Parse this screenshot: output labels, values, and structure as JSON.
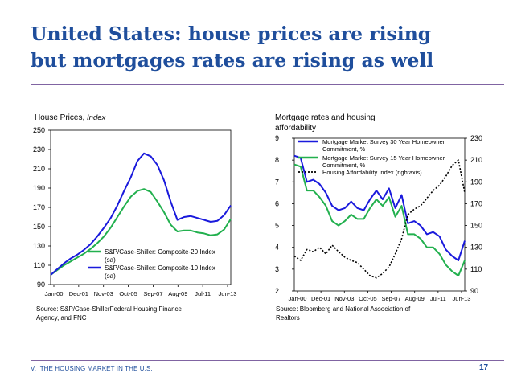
{
  "slide": {
    "title_line1": "United States: house prices are rising",
    "title_line2": "but mortgages rates are rising as well",
    "footer_section": "V.",
    "footer_text": "THE HOUSING MARKET IN THE U.S.",
    "page_number": "17",
    "colors": {
      "title": "#1f4e9c",
      "rule": "#8064a2",
      "blue": "#1a1adc",
      "green": "#22b04e",
      "black": "#000000"
    }
  },
  "chart_data": [
    {
      "type": "line",
      "title": "House Prices,",
      "title_unit": "Index",
      "source": "Source: S&P/Case-ShillerFederal Housing Finance Agency, and FNC",
      "x_ticks": [
        "Jan-00",
        "Dec-01",
        "Nov-03",
        "Oct-05",
        "Sep-07",
        "Aug-09",
        "Jul-11",
        "Jun-13"
      ],
      "ylim": [
        90,
        250
      ],
      "y_ticks": [
        90,
        110,
        130,
        150,
        170,
        190,
        210,
        230,
        250
      ],
      "legend_position": "bottom-right",
      "x": [
        "Jan-00",
        "Jul-00",
        "Jan-01",
        "Jul-01",
        "Jan-02",
        "Jul-02",
        "Jan-03",
        "Jul-03",
        "Jan-04",
        "Jul-04",
        "Jan-05",
        "Jul-05",
        "Jan-06",
        "Jul-06",
        "Jan-07",
        "Jul-07",
        "Jan-08",
        "Jul-08",
        "Jan-09",
        "Jul-09",
        "Jan-10",
        "Jul-10",
        "Jan-11",
        "Jul-11",
        "Jan-12",
        "Jul-12",
        "Jan-13",
        "Jun-13"
      ],
      "series": [
        {
          "name": "S&P/Case-Shiller: Composite-20 Index (sa)",
          "color": "#22b04e",
          "values": [
            100,
            105,
            110,
            114,
            118,
            122,
            127,
            133,
            140,
            149,
            160,
            171,
            181,
            187,
            189,
            186,
            176,
            165,
            152,
            145,
            146,
            146,
            144,
            143,
            141,
            142,
            147,
            158
          ]
        },
        {
          "name": "S&P/Case-Shiller: Composite-10 Index (sa)",
          "color": "#1a1adc",
          "values": [
            100,
            106,
            112,
            117,
            121,
            126,
            132,
            140,
            149,
            159,
            172,
            187,
            201,
            218,
            226,
            223,
            214,
            198,
            176,
            157,
            160,
            161,
            159,
            157,
            155,
            156,
            162,
            172
          ]
        }
      ]
    },
    {
      "type": "line",
      "title": "Mortgage rates and housing affordability",
      "source": "Source: Bloomberg and National Association of Realtors",
      "x_ticks": [
        "Jan-00",
        "Dec-01",
        "Nov-03",
        "Oct-05",
        "Sep-07",
        "Aug-09",
        "Jul-11",
        "Jun-13"
      ],
      "ylim_left": [
        2,
        9
      ],
      "y_ticks_left": [
        2,
        3,
        4,
        5,
        6,
        7,
        8,
        9
      ],
      "ylim_right": [
        90,
        230
      ],
      "y_ticks_right": [
        90,
        110,
        130,
        150,
        170,
        190,
        210,
        230
      ],
      "legend_position": "top-right",
      "x": [
        "Jan-00",
        "Jul-00",
        "Jan-01",
        "Jul-01",
        "Jan-02",
        "Jul-02",
        "Jan-03",
        "Jul-03",
        "Jan-04",
        "Jul-04",
        "Jan-05",
        "Jul-05",
        "Jan-06",
        "Jul-06",
        "Jan-07",
        "Jul-07",
        "Jan-08",
        "Jul-08",
        "Jan-09",
        "Jul-09",
        "Jan-10",
        "Jul-10",
        "Jan-11",
        "Jul-11",
        "Jan-12",
        "Jul-12",
        "Jan-13",
        "Jun-13"
      ],
      "series": [
        {
          "name": "Mortgage Market Survey 30 Year Homeowner Commitment, %",
          "color": "#1a1adc",
          "axis": "left",
          "dash": false,
          "values": [
            8.2,
            8.1,
            7.0,
            7.1,
            6.9,
            6.5,
            5.9,
            5.7,
            5.8,
            6.1,
            5.8,
            5.7,
            6.2,
            6.6,
            6.2,
            6.7,
            5.8,
            6.4,
            5.1,
            5.2,
            5.0,
            4.6,
            4.7,
            4.5,
            3.9,
            3.6,
            3.4,
            4.3
          ]
        },
        {
          "name": "Mortgage Market Survey 15 Year Homeowner Commitment, %",
          "color": "#22b04e",
          "axis": "left",
          "dash": false,
          "values": [
            7.8,
            7.7,
            6.6,
            6.6,
            6.3,
            5.9,
            5.2,
            5.0,
            5.2,
            5.5,
            5.3,
            5.3,
            5.8,
            6.2,
            5.9,
            6.3,
            5.4,
            5.9,
            4.6,
            4.6,
            4.4,
            4.0,
            4.0,
            3.7,
            3.2,
            2.9,
            2.7,
            3.4
          ]
        },
        {
          "name": "Housing Affordability Index (rightaxis)",
          "color": "#000000",
          "axis": "right",
          "dash": true,
          "values": [
            122,
            118,
            128,
            126,
            130,
            124,
            132,
            126,
            121,
            118,
            116,
            110,
            104,
            102,
            106,
            112,
            124,
            138,
            160,
            165,
            168,
            175,
            182,
            187,
            195,
            205,
            210,
            180
          ]
        }
      ]
    }
  ]
}
